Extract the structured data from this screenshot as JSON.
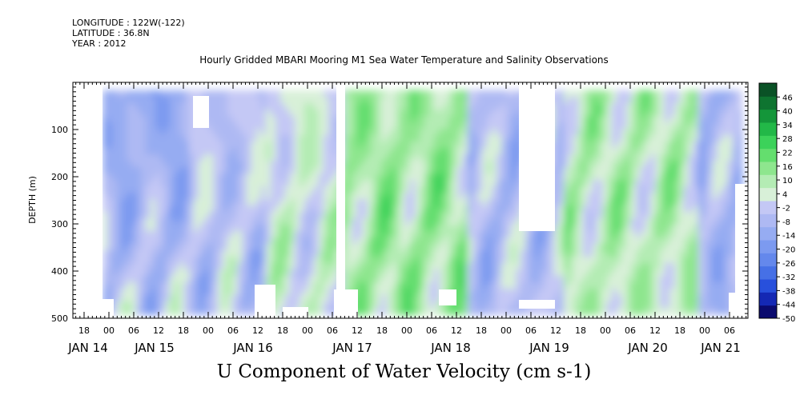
{
  "header": {
    "longitude": "LONGITUDE : 122W(-122)",
    "latitude": "LATITUDE : 36.8N",
    "year": "YEAR : 2012"
  },
  "chart_data": {
    "type": "heatmap",
    "title": "Hourly Gridded MBARI Mooring M1 Sea Water Temperature and Salinity Observations",
    "variable_label": "U Component of Water Velocity (cm s-1)",
    "ylabel": "DEPTH (m)",
    "y_axis_reversed": true,
    "ylim": [
      500,
      0
    ],
    "y_ticks": [
      "100",
      "200",
      "300",
      "400",
      "500"
    ],
    "x_hour_ticks": [
      "18",
      "00",
      "06",
      "12",
      "18",
      "00",
      "06",
      "12",
      "18",
      "00",
      "06",
      "12",
      "18",
      "00",
      "06",
      "12",
      "18",
      "00",
      "06",
      "12",
      "18",
      "00",
      "06",
      "12",
      "18",
      "00",
      "06"
    ],
    "x_date_labels": [
      "JAN 14",
      "JAN 15",
      "JAN 16",
      "JAN 17",
      "JAN 18",
      "JAN 19",
      "JAN 20",
      "JAN 21"
    ],
    "colorbar": {
      "levels": [
        "46",
        "40",
        "34",
        "28",
        "22",
        "16",
        "10",
        "4",
        "-2",
        "-8",
        "-14",
        "-20",
        "-26",
        "-32",
        "-38",
        "-44",
        "-50"
      ],
      "range": [
        -50,
        52
      ],
      "colors_low_to_high": [
        "#0a0a6e",
        "#1428b4",
        "#2850dc",
        "#4670e6",
        "#6488ec",
        "#7c9af0",
        "#96acf2",
        "#aeb9f3",
        "#c4c8f5",
        "#d8f0d8",
        "#b4ecb4",
        "#8ee68e",
        "#64de6e",
        "#3cd25a",
        "#22b848",
        "#14963a",
        "#0e7430",
        "#0a5226"
      ]
    },
    "data_gaps": [
      "Jan 14 18:00-23:00 (no data)",
      "Jan 17 ~09:00 (narrow gap)",
      "Jan 19 ~03:00-14:00, 0-320 m (no data)"
    ],
    "grid": false,
    "legend": "colorbar-right"
  }
}
